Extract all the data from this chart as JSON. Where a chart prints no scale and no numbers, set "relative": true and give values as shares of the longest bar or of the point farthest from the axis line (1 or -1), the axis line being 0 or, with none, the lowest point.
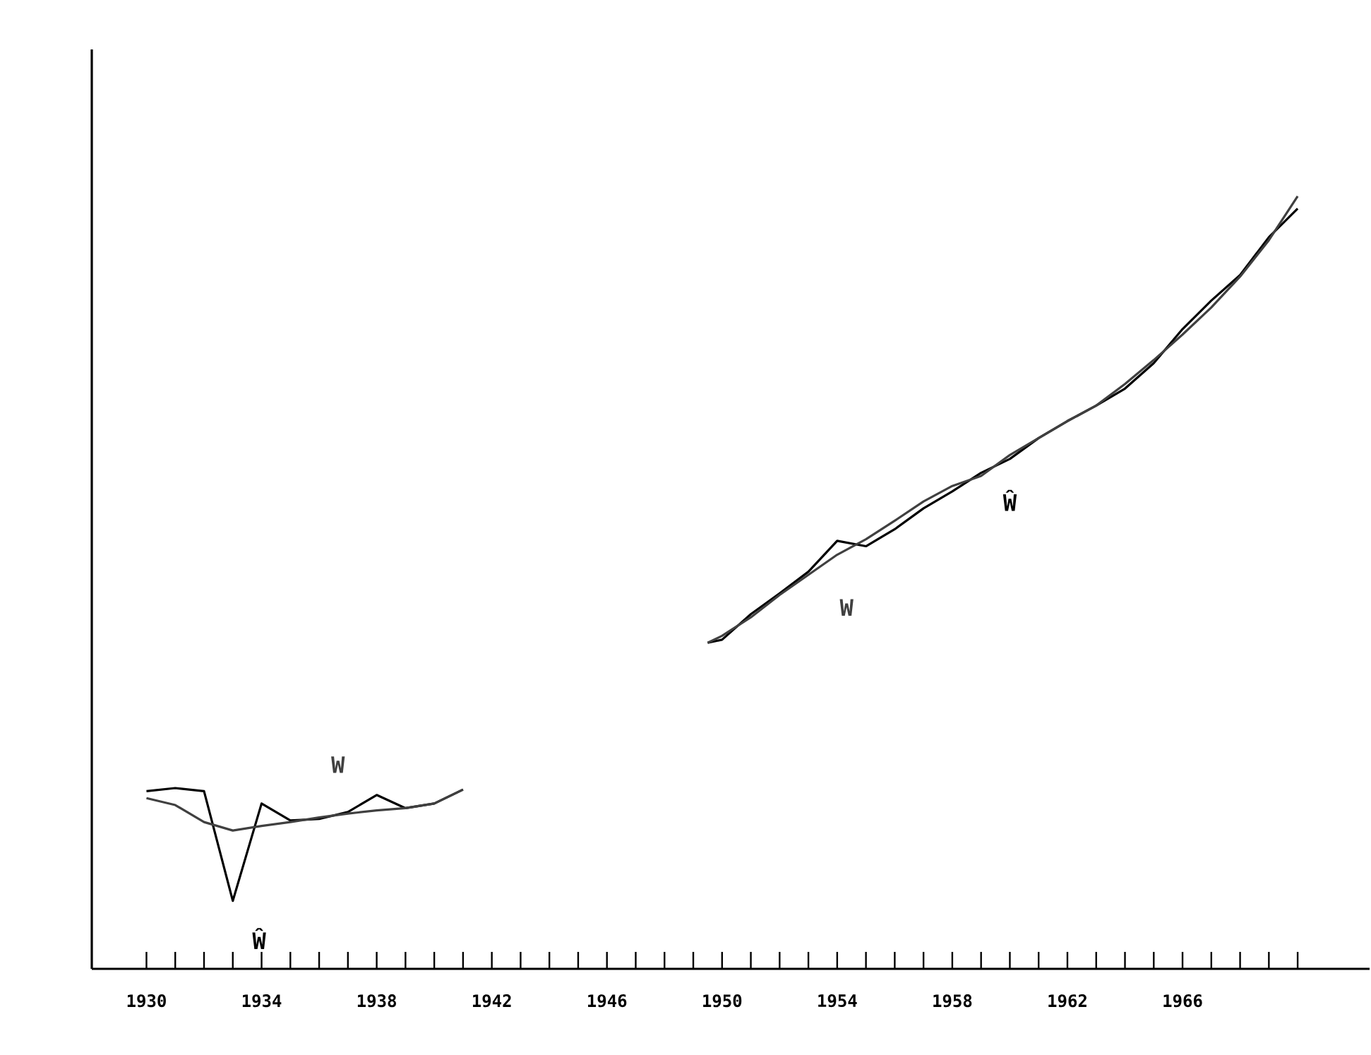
{
  "chart_data": {
    "type": "line",
    "relative": true,
    "x": [
      1930,
      1931,
      1932,
      1933,
      1934,
      1935,
      1936,
      1937,
      1938,
      1939,
      1940,
      1941,
      1945,
      1949.5,
      1950,
      1951,
      1952,
      1953,
      1954,
      1955,
      1956,
      1957,
      1958,
      1959,
      1960,
      1961,
      1962,
      1963,
      1964,
      1965,
      1966,
      1967,
      1968,
      1969,
      1970
    ],
    "xlim": [
      1928.1,
      1972.5
    ],
    "xticks": [
      1930,
      {
        "value": 1931,
        "label": null
      },
      {
        "value": 1932,
        "label": null
      },
      {
        "value": 1933,
        "label": null
      },
      1934,
      {
        "value": 1935,
        "label": null
      },
      {
        "value": 1936,
        "label": null
      },
      {
        "value": 1937,
        "label": null
      },
      1938,
      {
        "value": 1939,
        "label": null
      },
      {
        "value": 1940,
        "label": null
      },
      {
        "value": 1941,
        "label": null
      },
      1942,
      {
        "value": 1943,
        "label": null
      },
      {
        "value": 1944,
        "label": null
      },
      {
        "value": 1945,
        "label": null
      },
      1946,
      {
        "value": 1947,
        "label": null
      },
      {
        "value": 1948,
        "label": null
      },
      {
        "value": 1949,
        "label": null
      },
      1950,
      {
        "value": 1951,
        "label": null
      },
      {
        "value": 1952,
        "label": null
      },
      {
        "value": 1953,
        "label": null
      },
      1954,
      {
        "value": 1955,
        "label": null
      },
      {
        "value": 1956,
        "label": null
      },
      {
        "value": 1957,
        "label": null
      },
      1958,
      {
        "value": 1959,
        "label": null
      },
      {
        "value": 1960,
        "label": null
      },
      {
        "value": 1961,
        "label": null
      },
      1962,
      {
        "value": 1963,
        "label": null
      },
      {
        "value": 1964,
        "label": null
      },
      {
        "value": 1965,
        "label": null
      },
      1966,
      {
        "value": 1967,
        "label": null
      },
      {
        "value": 1968,
        "label": null
      },
      {
        "value": 1969,
        "label": null
      },
      {
        "value": 1970,
        "label": null
      }
    ],
    "series": [
      {
        "name": "Ŵ",
        "color": "#000000",
        "values": [
          0.23,
          0.234,
          0.23,
          0.088,
          0.214,
          0.192,
          0.194,
          0.203,
          0.225,
          0.208,
          0.214,
          0.232,
          null,
          0.422,
          0.426,
          0.459,
          0.486,
          0.514,
          0.554,
          0.547,
          0.569,
          0.596,
          0.618,
          0.642,
          0.66,
          0.687,
          0.709,
          0.729,
          0.751,
          0.784,
          0.828,
          0.865,
          0.898,
          0.947,
          0.984
        ]
      },
      {
        "name": "W",
        "color": "#404040",
        "values": [
          0.221,
          0.212,
          0.19,
          0.179,
          0.185,
          0.19,
          0.196,
          0.201,
          0.205,
          0.208,
          0.214,
          0.232,
          null,
          0.422,
          0.431,
          0.455,
          0.484,
          0.51,
          0.536,
          0.556,
          0.58,
          0.605,
          0.625,
          0.638,
          0.665,
          0.687,
          0.709,
          0.729,
          0.757,
          0.788,
          0.821,
          0.856,
          0.896,
          0.943,
          1.0
        ]
      }
    ]
  }
}
